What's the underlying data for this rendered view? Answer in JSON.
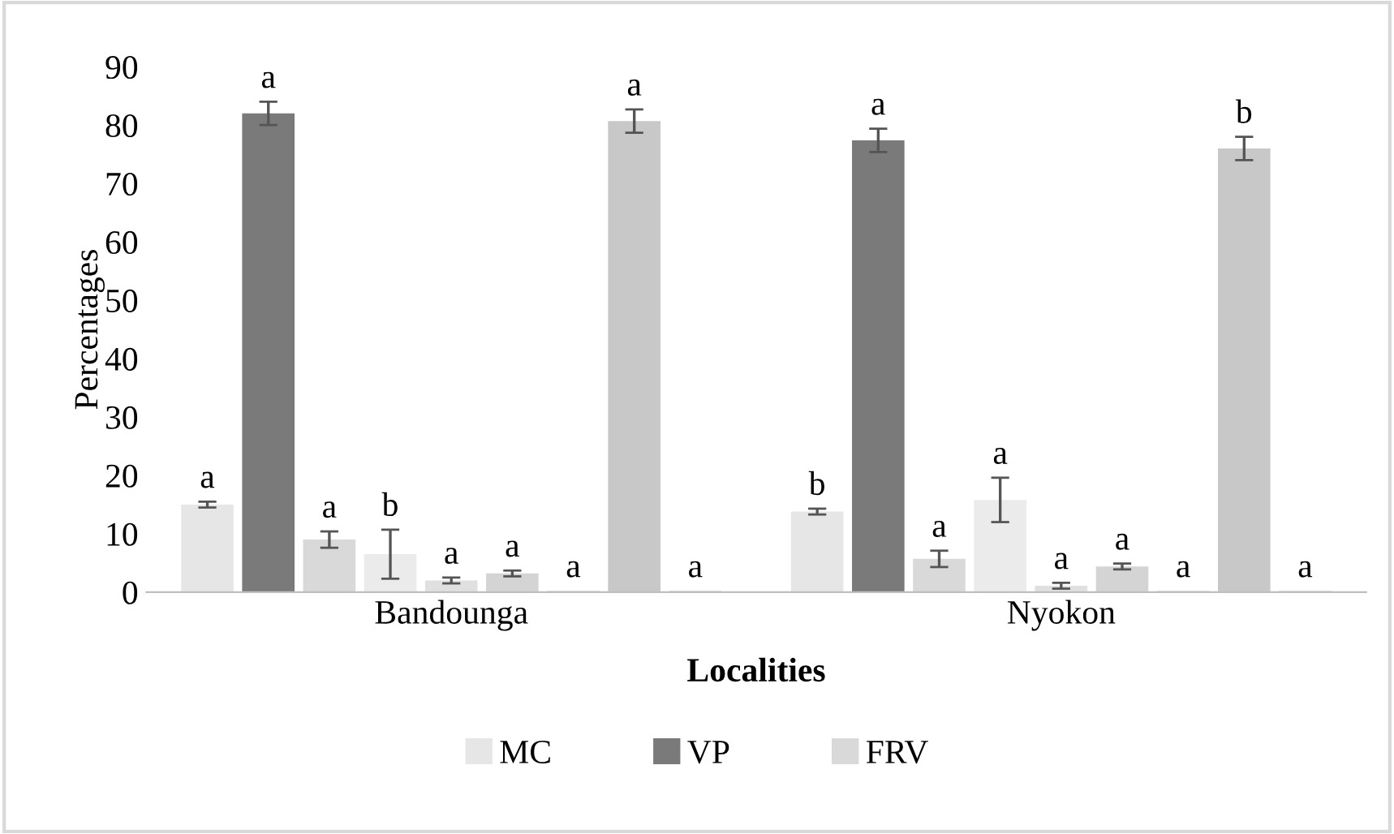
{
  "chart_data": {
    "type": "bar",
    "xlabel": "Localities",
    "ylabel": "Percentages",
    "categories": [
      "Bandounga",
      "Nyokon"
    ],
    "ylim": [
      0,
      90
    ],
    "yticks": [
      0,
      10,
      20,
      30,
      40,
      50,
      60,
      70,
      80,
      90
    ],
    "grid": false,
    "legend": "bottom",
    "series": [
      {
        "name": "MC",
        "color": "#e6e6e6",
        "values": [
          15,
          13.8
        ],
        "errors": [
          0.5,
          0.5
        ],
        "value_labels": [
          "a",
          "b"
        ]
      },
      {
        "name": "VP",
        "color": "#7a7a7a",
        "values": [
          82,
          77.4
        ],
        "errors": [
          2,
          2
        ],
        "value_labels": [
          "a",
          "a"
        ]
      },
      {
        "name": "FRV",
        "color": "#d9d9d9",
        "values": [
          9,
          5.7
        ],
        "errors": [
          1.4,
          1.4
        ],
        "value_labels": [
          "a",
          "a"
        ]
      },
      {
        "color": "#ebebeb",
        "values": [
          6.5,
          15.8
        ],
        "errors": [
          4.2,
          3.8
        ],
        "value_labels": [
          "b",
          "a"
        ]
      },
      {
        "color": "#e0e0e0",
        "values": [
          2,
          1.1
        ],
        "errors": [
          0.5,
          0.5
        ],
        "value_labels": [
          "a",
          "a"
        ]
      },
      {
        "color": "#d4d4d4",
        "values": [
          3.2,
          4.4
        ],
        "errors": [
          0.5,
          0.5
        ],
        "value_labels": [
          "a",
          "a"
        ]
      },
      {
        "color": "#cccccc",
        "values": [
          0.2,
          0.2
        ],
        "value_labels": [
          "a",
          "a"
        ]
      },
      {
        "color": "#c8c8c8",
        "values": [
          80.7,
          76
        ],
        "errors": [
          2,
          2
        ],
        "value_labels": [
          "a",
          "b"
        ]
      },
      {
        "color": "#bfbfbf",
        "values": [
          0.2,
          0.2
        ],
        "value_labels": [
          "a",
          "a"
        ]
      }
    ]
  }
}
